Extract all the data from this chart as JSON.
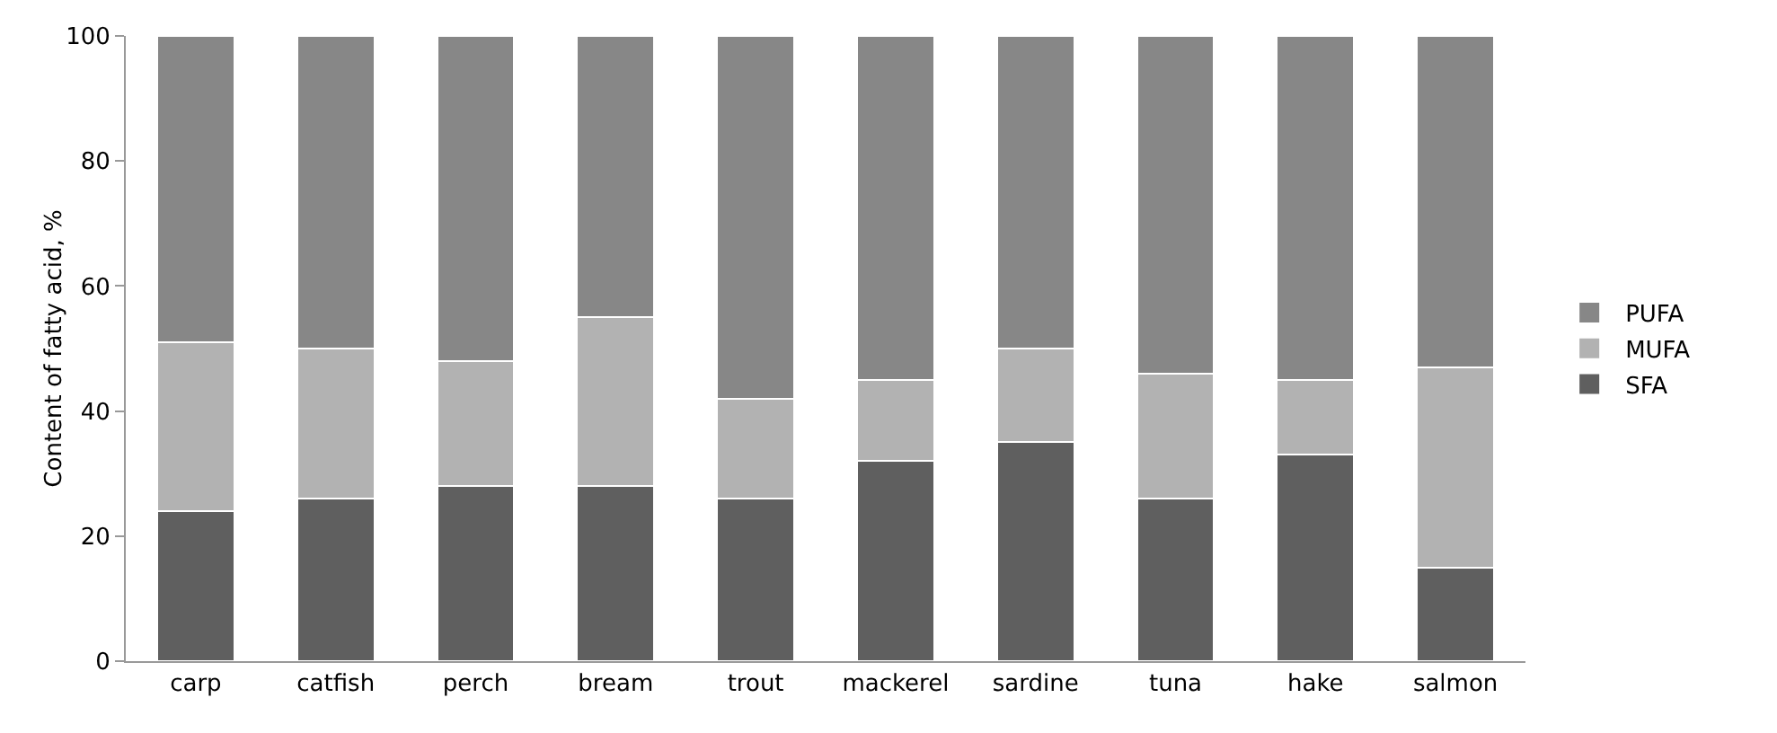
{
  "chart_data": {
    "type": "bar",
    "stacked": true,
    "ylabel": "Content of fatty acid, %",
    "categories": [
      "carp",
      "catfish",
      "perch",
      "bream",
      "trout",
      "mackerel",
      "sardine",
      "tuna",
      "hake",
      "salmon"
    ],
    "series": [
      {
        "name": "SFA",
        "color": "#5f5f5f",
        "values": [
          24,
          26,
          28,
          28,
          26,
          32,
          35,
          26,
          33,
          15
        ]
      },
      {
        "name": "MUFA",
        "color": "#b2b2b2",
        "values": [
          27,
          24,
          20,
          27,
          16,
          13,
          15,
          20,
          12,
          32
        ]
      },
      {
        "name": "PUFA",
        "color": "#878787",
        "values": [
          49,
          50,
          52,
          45,
          58,
          55,
          50,
          54,
          55,
          53
        ]
      }
    ],
    "ylim": [
      0,
      100
    ],
    "yticks": [
      0,
      20,
      40,
      60,
      80,
      100
    ],
    "grid": false,
    "legend": "right"
  }
}
